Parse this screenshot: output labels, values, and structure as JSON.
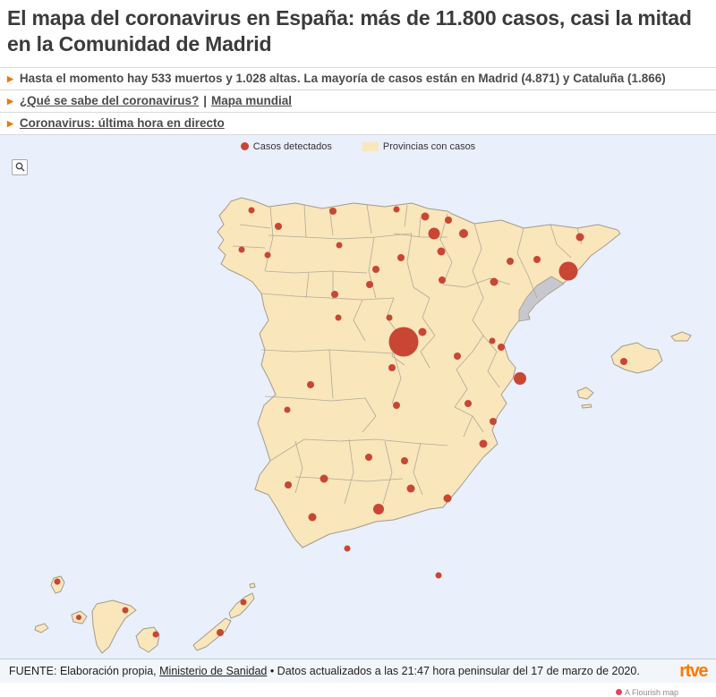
{
  "article": {
    "headline": "El mapa del coronavirus en España: más de 11.800 casos, casi la mitad en la Comunidad de Madrid",
    "bullets": {
      "b1": "Hasta el momento hay 533 muertos y 1.028 altas. La mayoría de casos están en Madrid (4.871) y Cataluña (1.866)",
      "b2_link1": "¿Qué se sabe del coronavirus?",
      "b2_sep": "|",
      "b2_link2": "Mapa mundial",
      "b3": "Coronavirus: última hora en directo"
    }
  },
  "map": {
    "type": "bubble-map",
    "region": "Spain, provinces with Balearic and Canary Islands",
    "legend": {
      "cases_label": "Casos detectados",
      "provinces_label": "Provincias con casos"
    },
    "colors": {
      "sea_background": "#e9effb",
      "province_fill": "#f9e6bb",
      "province_no_cases_fill": "#c7c7cd",
      "bubble": "#c94634",
      "border": "#aaa294"
    },
    "markers": [
      [
        281,
        84,
        3.5
      ],
      [
        311,
        102,
        4
      ],
      [
        270,
        128,
        3.5
      ],
      [
        299,
        134,
        3.5
      ],
      [
        372,
        85,
        4
      ],
      [
        443,
        83,
        3.5
      ],
      [
        475,
        91,
        4.5
      ],
      [
        501,
        95,
        4
      ],
      [
        485,
        110,
        6.5
      ],
      [
        518,
        110,
        5
      ],
      [
        493,
        130,
        4.5
      ],
      [
        379,
        123,
        3.5
      ],
      [
        420,
        150,
        4
      ],
      [
        448,
        137,
        4
      ],
      [
        413,
        167,
        4
      ],
      [
        374,
        178,
        4
      ],
      [
        494,
        162,
        4
      ],
      [
        378,
        204,
        3.5
      ],
      [
        435,
        204,
        3.5
      ],
      [
        552,
        164,
        4.5
      ],
      [
        570,
        141,
        4
      ],
      [
        600,
        139,
        4
      ],
      [
        648,
        114,
        4.5
      ],
      [
        635,
        152,
        10.5
      ],
      [
        550,
        230,
        3.5
      ],
      [
        451,
        231,
        16.5
      ],
      [
        472,
        220,
        4.5
      ],
      [
        438,
        260,
        4
      ],
      [
        511,
        247,
        4
      ],
      [
        347,
        279,
        4
      ],
      [
        321,
        307,
        3.5
      ],
      [
        443,
        302,
        4
      ],
      [
        523,
        300,
        4
      ],
      [
        581,
        272,
        7
      ],
      [
        560,
        237,
        4
      ],
      [
        551,
        320,
        4
      ],
      [
        540,
        345,
        4.5
      ],
      [
        322,
        391,
        4
      ],
      [
        362,
        384,
        4.5
      ],
      [
        412,
        360,
        4
      ],
      [
        452,
        364,
        4
      ],
      [
        459,
        395,
        4.5
      ],
      [
        423,
        418,
        6
      ],
      [
        349,
        427,
        4.5
      ],
      [
        500,
        406,
        4.5
      ],
      [
        388,
        462,
        3.5
      ],
      [
        490,
        492,
        3.5
      ],
      [
        697,
        253,
        4
      ],
      [
        64,
        499,
        3.5
      ],
      [
        88,
        539,
        3
      ],
      [
        140,
        531,
        3.5
      ],
      [
        174,
        558,
        3.5
      ],
      [
        246,
        556,
        4
      ],
      [
        272,
        522,
        3.5
      ]
    ]
  },
  "footer": {
    "source_prefix": "FUENTE: Elaboración propia, ",
    "source_link": "Ministerio de Sanidad",
    "source_suffix": " • Datos actualizados a las 21:47 hora peninsular del 17 de marzo de 2020.",
    "logo_text": "rtve"
  },
  "attribution": "A Flourish map"
}
